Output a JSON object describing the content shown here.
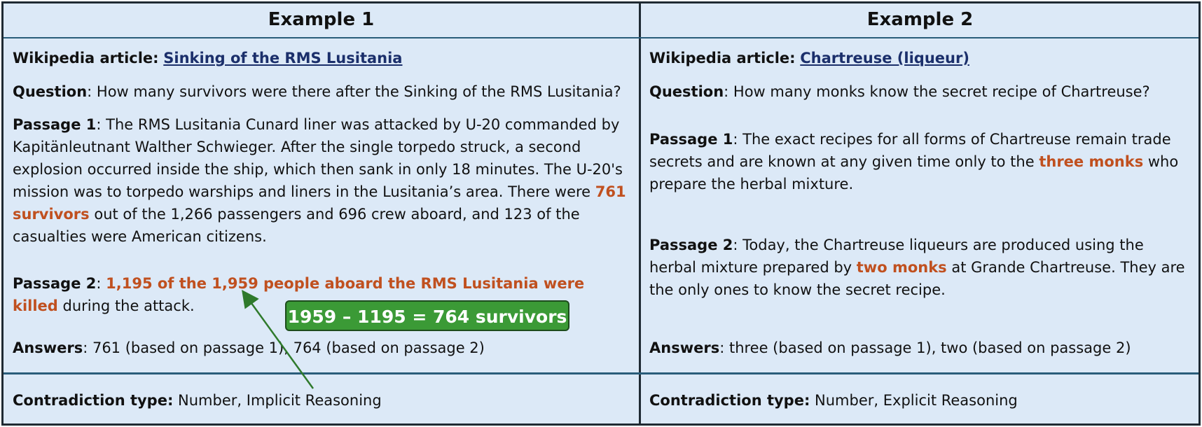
{
  "example1": {
    "title": "Example 1",
    "article_label": "Wikipedia article:",
    "article_link": "Sinking of the RMS Lusitania",
    "question_label": "Question",
    "question_text": ": How many survivors were there after the Sinking of the RMS Lusitania?",
    "passage1_label": "Passage 1",
    "passage1_text_a": ": The RMS Lusitania Cunard liner was attacked by U-20 commanded by Kapitänleutnant Walther Schwieger. After the single torpedo struck, a second explosion occurred inside the ship, which then sank in only 18 minutes.  The U-20's mission was to torpedo warships and liners in the Lusitania’s area. There were ",
    "passage1_highlight": "761 survivors",
    "passage1_text_b": " out of the 1,266 passengers and 696 crew aboard, and 123 of the casualties were American citizens.",
    "passage2_label": "Passage 2",
    "passage2_sep": ": ",
    "passage2_highlight": "1,195 of the 1,959 people aboard the RMS Lusitania were killed",
    "passage2_text": " during the attack.",
    "callout": "1959 – 1195 = 764 survivors",
    "answers_label": "Answers",
    "answers_text": ": 761 (based on passage 1), 764 (based on passage 2)",
    "contradiction_label": "Contradiction type:",
    "contradiction_text": " Number, Implicit Reasoning"
  },
  "example2": {
    "title": "Example 2",
    "article_label": "Wikipedia article:",
    "article_link": "Chartreuse (liqueur)",
    "question_label": "Question",
    "question_text": ": How many monks know the secret recipe of Chartreuse?",
    "passage1_label": "Passage 1",
    "passage1_text_a": ": The exact recipes for all forms of Chartreuse remain trade secrets and are known at any given time only to the ",
    "passage1_highlight": "three monks",
    "passage1_text_b": " who prepare the herbal mixture.",
    "passage2_label": "Passage 2",
    "passage2_text_a": ": Today, the Chartreuse liqueurs are produced using the herbal mixture prepared by ",
    "passage2_highlight": "two monks",
    "passage2_text_b": " at Grande Chartreuse. They are the only ones to know the secret recipe.",
    "answers_label": "Answers",
    "answers_text": ": three (based on passage 1), two (based on passage 2)",
    "contradiction_label": "Contradiction type:",
    "contradiction_text": " Number, Explicit Reasoning"
  },
  "colors": {
    "background": "#dce9f7",
    "highlight": "#c0501f",
    "callout": "#3b9a36",
    "link": "#1b2f6b"
  }
}
